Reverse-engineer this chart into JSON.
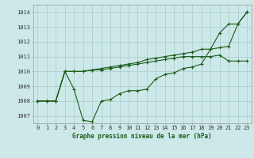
{
  "bg_color": "#cce8e8",
  "grid_color": "#aacccc",
  "line_color": "#1a5c1a",
  "x": [
    0,
    1,
    2,
    3,
    4,
    5,
    6,
    7,
    8,
    9,
    10,
    11,
    12,
    13,
    14,
    15,
    16,
    17,
    18,
    19,
    20,
    21,
    22,
    23
  ],
  "series": [
    [
      1008.0,
      1008.0,
      1008.0,
      1010.0,
      1008.8,
      1006.7,
      1006.6,
      1008.0,
      1008.1,
      1008.5,
      1008.7,
      1008.7,
      1008.8,
      1009.5,
      1009.8,
      1009.9,
      1010.2,
      1010.3,
      1010.5,
      1011.5,
      1012.6,
      1013.2,
      1013.2,
      1014.0
    ],
    [
      1008.0,
      1008.0,
      1008.0,
      1010.0,
      1010.0,
      1010.0,
      1010.1,
      1010.2,
      1010.3,
      1010.4,
      1010.5,
      1010.6,
      1010.8,
      1010.9,
      1011.0,
      1011.1,
      1011.2,
      1011.3,
      1011.5,
      1011.5,
      1011.6,
      1011.7,
      1013.2,
      1014.0
    ],
    [
      1008.0,
      1008.0,
      1008.0,
      1010.0,
      1010.0,
      1010.0,
      1010.1,
      1010.1,
      1010.2,
      1010.3,
      1010.4,
      1010.5,
      1010.6,
      1010.7,
      1010.8,
      1010.9,
      1011.0,
      1011.0,
      1011.0,
      1011.0,
      1011.1,
      1010.7,
      1010.7,
      1010.7
    ]
  ],
  "ylim": [
    1006.5,
    1014.5
  ],
  "yticks": [
    1007,
    1008,
    1009,
    1010,
    1011,
    1012,
    1013,
    1014
  ],
  "xticks": [
    0,
    1,
    2,
    3,
    4,
    5,
    6,
    7,
    8,
    9,
    10,
    11,
    12,
    13,
    14,
    15,
    16,
    17,
    18,
    19,
    20,
    21,
    22,
    23
  ],
  "xlabel": "Graphe pression niveau de la mer (hPa)",
  "marker": "+",
  "marker_size": 3,
  "line_width": 0.8,
  "tick_fontsize": 5,
  "xlabel_fontsize": 5.5
}
